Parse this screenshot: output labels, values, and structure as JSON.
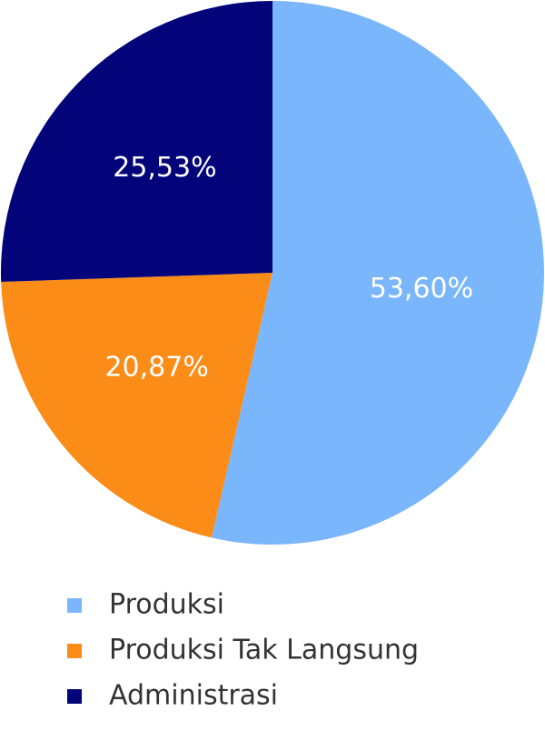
{
  "chart_data": {
    "type": "pie",
    "categories": [
      "Produksi",
      "Produksi Tak Langsung",
      "Administrasi"
    ],
    "values": [
      53.6,
      20.87,
      25.53
    ],
    "value_labels": [
      "53,60%",
      "20,87%",
      "25,53%"
    ],
    "colors": [
      "#7ab6fc",
      "#fb8c17",
      "#03037a"
    ],
    "legend": "bottom"
  }
}
